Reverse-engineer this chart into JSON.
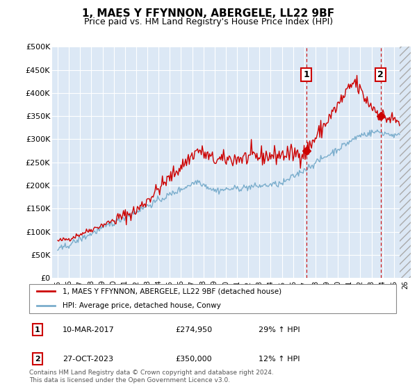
{
  "title": "1, MAES Y FFYNNON, ABERGELE, LL22 9BF",
  "subtitle": "Price paid vs. HM Land Registry's House Price Index (HPI)",
  "ylim": [
    0,
    500000
  ],
  "yticks": [
    0,
    50000,
    100000,
    150000,
    200000,
    250000,
    300000,
    350000,
    400000,
    450000,
    500000
  ],
  "ytick_labels": [
    "£0",
    "£50K",
    "£100K",
    "£150K",
    "£200K",
    "£250K",
    "£300K",
    "£350K",
    "£400K",
    "£450K",
    "£500K"
  ],
  "line_color_red": "#cc0000",
  "line_color_blue": "#7aadcc",
  "marker1_date": 2017.19,
  "marker1_label": "1",
  "marker1_price": 274950,
  "marker2_date": 2023.82,
  "marker2_label": "2",
  "marker2_price": 350000,
  "vline1_date": 2017.19,
  "vline2_date": 2023.82,
  "legend_line1": "1, MAES Y FFYNNON, ABERGELE, LL22 9BF (detached house)",
  "legend_line2": "HPI: Average price, detached house, Conwy",
  "table_row1": [
    "1",
    "10-MAR-2017",
    "£274,950",
    "29% ↑ HPI"
  ],
  "table_row2": [
    "2",
    "27-OCT-2023",
    "£350,000",
    "12% ↑ HPI"
  ],
  "footnote": "Contains HM Land Registry data © Crown copyright and database right 2024.\nThis data is licensed under the Open Government Licence v3.0.",
  "background_color": "#dce8f5",
  "grid_color": "#ffffff",
  "xmin": 1994.5,
  "xmax": 2026.5
}
